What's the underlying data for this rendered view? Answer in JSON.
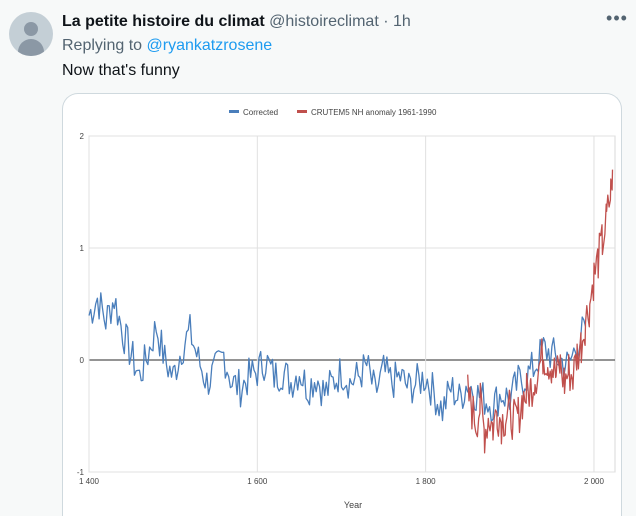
{
  "tweet": {
    "author_name": "La petite histoire du climat",
    "handle": "@histoireclimat",
    "separator": "·",
    "time": "1h",
    "replying_prefix": "Replying to",
    "replying_to": "@ryankatzrosene",
    "text": "Now that's funny",
    "more_icon": "more-horizontal-icon"
  },
  "chart_data": {
    "type": "line",
    "title": "",
    "xlabel": "Year",
    "ylabel": "",
    "xlim": [
      1400,
      2025
    ],
    "ylim": [
      -1,
      2
    ],
    "x_ticks": [
      1400,
      1600,
      1800,
      2000
    ],
    "x_tick_labels": [
      "1 400",
      "1 600",
      "1 800",
      "2 000"
    ],
    "y_ticks": [
      -1,
      0,
      1,
      2
    ],
    "y_tick_labels": [
      "-1",
      "0",
      "1",
      "2"
    ],
    "grid": true,
    "legend_position": "top-center",
    "series": [
      {
        "name": "Corrected",
        "color": "#4a7ebb",
        "points": [
          [
            1400,
            0.4
          ],
          [
            1410,
            0.55
          ],
          [
            1420,
            0.35
          ],
          [
            1430,
            0.55
          ],
          [
            1440,
            0.25
          ],
          [
            1450,
            0.05
          ],
          [
            1460,
            -0.15
          ],
          [
            1470,
            0.05
          ],
          [
            1480,
            0.3
          ],
          [
            1490,
            0.0
          ],
          [
            1500,
            -0.15
          ],
          [
            1510,
            0.1
          ],
          [
            1520,
            0.25
          ],
          [
            1530,
            0.0
          ],
          [
            1540,
            -0.2
          ],
          [
            1550,
            -0.1
          ],
          [
            1560,
            0.05
          ],
          [
            1570,
            -0.2
          ],
          [
            1580,
            -0.25
          ],
          [
            1590,
            -0.15
          ],
          [
            1600,
            -0.1
          ],
          [
            1610,
            0.0
          ],
          [
            1620,
            -0.15
          ],
          [
            1630,
            -0.1
          ],
          [
            1640,
            -0.2
          ],
          [
            1650,
            -0.1
          ],
          [
            1660,
            -0.25
          ],
          [
            1670,
            -0.15
          ],
          [
            1680,
            -0.3
          ],
          [
            1690,
            -0.2
          ],
          [
            1700,
            -0.1
          ],
          [
            1710,
            -0.2
          ],
          [
            1720,
            -0.15
          ],
          [
            1730,
            -0.05
          ],
          [
            1740,
            -0.3
          ],
          [
            1750,
            -0.1
          ],
          [
            1760,
            -0.2
          ],
          [
            1770,
            -0.15
          ],
          [
            1780,
            -0.25
          ],
          [
            1790,
            -0.2
          ],
          [
            1800,
            -0.15
          ],
          [
            1810,
            -0.3
          ],
          [
            1820,
            -0.45
          ],
          [
            1830,
            -0.25
          ],
          [
            1840,
            -0.35
          ],
          [
            1850,
            -0.2
          ],
          [
            1860,
            -0.3
          ],
          [
            1870,
            -0.35
          ],
          [
            1880,
            -0.4
          ],
          [
            1890,
            -0.3
          ],
          [
            1900,
            -0.35
          ],
          [
            1910,
            -0.2
          ],
          [
            1920,
            -0.15
          ],
          [
            1930,
            -0.05
          ],
          [
            1940,
            0.1
          ],
          [
            1950,
            0.05
          ],
          [
            1960,
            0.0
          ],
          [
            1970,
            -0.05
          ],
          [
            1980,
            0.15
          ],
          [
            1990,
            0.3
          ]
        ]
      },
      {
        "name": "CRUTEM5 NH anomaly 1961-1990",
        "color": "#c0504d",
        "points": [
          [
            1850,
            -0.3
          ],
          [
            1855,
            -0.45
          ],
          [
            1860,
            -0.55
          ],
          [
            1865,
            -0.4
          ],
          [
            1870,
            -0.65
          ],
          [
            1875,
            -0.5
          ],
          [
            1880,
            -0.6
          ],
          [
            1885,
            -0.45
          ],
          [
            1890,
            -0.55
          ],
          [
            1895,
            -0.5
          ],
          [
            1900,
            -0.45
          ],
          [
            1905,
            -0.55
          ],
          [
            1910,
            -0.5
          ],
          [
            1915,
            -0.35
          ],
          [
            1920,
            -0.3
          ],
          [
            1925,
            -0.25
          ],
          [
            1930,
            -0.15
          ],
          [
            1935,
            -0.05
          ],
          [
            1940,
            0.05
          ],
          [
            1945,
            0.0
          ],
          [
            1950,
            -0.05
          ],
          [
            1955,
            -0.15
          ],
          [
            1960,
            -0.05
          ],
          [
            1965,
            -0.2
          ],
          [
            1970,
            -0.1
          ],
          [
            1975,
            -0.15
          ],
          [
            1980,
            0.05
          ],
          [
            1985,
            0.15
          ],
          [
            1990,
            0.35
          ],
          [
            1995,
            0.5
          ],
          [
            2000,
            0.75
          ],
          [
            2005,
            0.9
          ],
          [
            2010,
            1.05
          ],
          [
            2015,
            1.25
          ],
          [
            2020,
            1.5
          ],
          [
            2022,
            1.7
          ]
        ]
      }
    ]
  }
}
